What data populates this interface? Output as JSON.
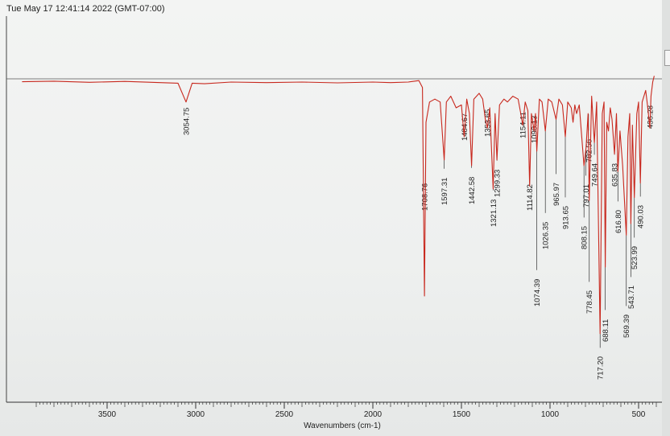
{
  "header": {
    "timestamp": "Tue May 17 12:41:14 2022 (GMT-07:00)"
  },
  "colors": {
    "spectrum": "#c8281e",
    "axis": "#333333",
    "frame": "#444444"
  },
  "chart_data": {
    "type": "line",
    "title": "",
    "xlabel": "Wavenumbers (cm-1)",
    "ylabel": "",
    "xlim": [
      4000,
      400
    ],
    "x_reversed": true,
    "ylim": [
      0,
      100
    ],
    "grid": false,
    "xticks": [
      3500,
      3000,
      2500,
      2000,
      1500,
      1000,
      500
    ],
    "series": [
      {
        "points": [
          [
            3980,
            99.0
          ],
          [
            3800,
            99.2
          ],
          [
            3600,
            98.8
          ],
          [
            3400,
            99.1
          ],
          [
            3200,
            98.7
          ],
          [
            3100,
            98.5
          ],
          [
            3054.75,
            92.0
          ],
          [
            3020,
            98.5
          ],
          [
            2950,
            98.3
          ],
          [
            2800,
            98.9
          ],
          [
            2600,
            98.7
          ],
          [
            2400,
            98.9
          ],
          [
            2200,
            98.6
          ],
          [
            2000,
            98.9
          ],
          [
            1900,
            98.7
          ],
          [
            1800,
            98.9
          ],
          [
            1740,
            99.4
          ],
          [
            1720,
            97.0
          ],
          [
            1708.76,
            25.0
          ],
          [
            1700,
            85.0
          ],
          [
            1680,
            92.0
          ],
          [
            1650,
            93.0
          ],
          [
            1620,
            92.0
          ],
          [
            1597.31,
            72.0
          ],
          [
            1585,
            92.0
          ],
          [
            1560,
            94.0
          ],
          [
            1530,
            90.0
          ],
          [
            1500,
            91.0
          ],
          [
            1484.67,
            80.0
          ],
          [
            1470,
            93.0
          ],
          [
            1455,
            88.0
          ],
          [
            1442.58,
            70.0
          ],
          [
            1430,
            93.0
          ],
          [
            1400,
            95.0
          ],
          [
            1380,
            93.0
          ],
          [
            1365,
            86.0
          ],
          [
            1353.65,
            83.0
          ],
          [
            1340,
            90.0
          ],
          [
            1321.13,
            62.0
          ],
          [
            1310,
            88.0
          ],
          [
            1299.33,
            72.0
          ],
          [
            1285,
            91.0
          ],
          [
            1260,
            93.0
          ],
          [
            1240,
            92.0
          ],
          [
            1210,
            94.0
          ],
          [
            1180,
            93.0
          ],
          [
            1165,
            88.0
          ],
          [
            1154.11,
            84.0
          ],
          [
            1140,
            92.0
          ],
          [
            1125,
            89.0
          ],
          [
            1114.82,
            63.0
          ],
          [
            1105,
            88.0
          ],
          [
            1090.13,
            82.0
          ],
          [
            1082,
            88.0
          ],
          [
            1074.39,
            75.0
          ],
          [
            1060,
            93.0
          ],
          [
            1045,
            92.0
          ],
          [
            1026.35,
            82.0
          ],
          [
            1010,
            93.0
          ],
          [
            990,
            92.0
          ],
          [
            965.97,
            86.0
          ],
          [
            950,
            93.0
          ],
          [
            930,
            91.0
          ],
          [
            913.65,
            80.0
          ],
          [
            900,
            92.0
          ],
          [
            880,
            90.0
          ],
          [
            870,
            85.0
          ],
          [
            860,
            91.0
          ],
          [
            850,
            88.0
          ],
          [
            835,
            91.0
          ],
          [
            808.15,
            70.0
          ],
          [
            797.01,
            76.0
          ],
          [
            785,
            88.0
          ],
          [
            778.45,
            58.0
          ],
          [
            765,
            94.0
          ],
          [
            749.64,
            78.0
          ],
          [
            737,
            92.0
          ],
          [
            717.2,
            12.0
          ],
          [
            705,
            88.0
          ],
          [
            695,
            92.0
          ],
          [
            688.11,
            35.0
          ],
          [
            680,
            85.0
          ],
          [
            670,
            82.0
          ],
          [
            660,
            90.0
          ],
          [
            650,
            86.0
          ],
          [
            635.83,
            74.0
          ],
          [
            625,
            88.0
          ],
          [
            616.8,
            68.0
          ],
          [
            605,
            82.0
          ],
          [
            590,
            70.0
          ],
          [
            569.39,
            46.0
          ],
          [
            560,
            80.0
          ],
          [
            550,
            88.0
          ],
          [
            543.71,
            50.0
          ],
          [
            535,
            84.0
          ],
          [
            523.99,
            59.0
          ],
          [
            510,
            88.0
          ],
          [
            500,
            92.0
          ],
          [
            490.03,
            64.0
          ],
          [
            480,
            92.0
          ],
          [
            460,
            96.0
          ],
          [
            450,
            91.0
          ],
          [
            436.28,
            83.0
          ],
          [
            430,
            94.0
          ],
          [
            420,
            99.0
          ],
          [
            412,
            101.0
          ]
        ]
      }
    ],
    "peak_labels": [
      {
        "wavenumber": 3054.75,
        "label": "3054.75"
      },
      {
        "wavenumber": 1708.76,
        "label": "1708.76"
      },
      {
        "wavenumber": 1597.31,
        "label": "1597.31"
      },
      {
        "wavenumber": 1484.67,
        "label": "1484.67"
      },
      {
        "wavenumber": 1442.58,
        "label": "1442.58"
      },
      {
        "wavenumber": 1353.65,
        "label": "1353.65"
      },
      {
        "wavenumber": 1321.13,
        "label": "1321.13"
      },
      {
        "wavenumber": 1299.33,
        "label": "1299.33"
      },
      {
        "wavenumber": 1154.11,
        "label": "1154.11"
      },
      {
        "wavenumber": 1114.82,
        "label": "1114.82"
      },
      {
        "wavenumber": 1090.13,
        "label": "1090.13"
      },
      {
        "wavenumber": 1074.39,
        "label": "1074.39"
      },
      {
        "wavenumber": 1026.35,
        "label": "1026.35"
      },
      {
        "wavenumber": 965.97,
        "label": "965.97"
      },
      {
        "wavenumber": 913.65,
        "label": "913.65"
      },
      {
        "wavenumber": 808.15,
        "label": "808.15"
      },
      {
        "wavenumber": 797.01,
        "label": "797.01"
      },
      {
        "wavenumber": 782.56,
        "label": "782.56"
      },
      {
        "wavenumber": 778.45,
        "label": "778.45"
      },
      {
        "wavenumber": 749.64,
        "label": "749.64"
      },
      {
        "wavenumber": 717.2,
        "label": "717.20"
      },
      {
        "wavenumber": 688.11,
        "label": "688.11"
      },
      {
        "wavenumber": 635.83,
        "label": "635.83"
      },
      {
        "wavenumber": 616.8,
        "label": "616.80"
      },
      {
        "wavenumber": 569.39,
        "label": "569.39"
      },
      {
        "wavenumber": 543.71,
        "label": "543.71"
      },
      {
        "wavenumber": 523.99,
        "label": "523.99"
      },
      {
        "wavenumber": 490.03,
        "label": "490.03"
      },
      {
        "wavenumber": 436.28,
        "label": "436.28"
      }
    ]
  }
}
